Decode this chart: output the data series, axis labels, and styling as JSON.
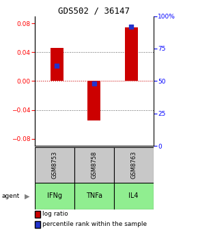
{
  "title": "GDS502 / 36147",
  "samples": [
    "GSM8753",
    "GSM8758",
    "GSM8763"
  ],
  "agents": [
    "IFNg",
    "TNFa",
    "IL4"
  ],
  "log_ratios": [
    0.046,
    -0.055,
    0.074
  ],
  "percentile_ranks": [
    0.62,
    0.48,
    0.92
  ],
  "ylim_left": [
    -0.09,
    0.09
  ],
  "ylim_right": [
    0,
    1
  ],
  "yticks_left": [
    -0.08,
    -0.04,
    0,
    0.04,
    0.08
  ],
  "yticks_right": [
    0,
    0.25,
    0.5,
    0.75,
    1.0
  ],
  "ytick_labels_right": [
    "0",
    "25",
    "50",
    "75",
    "100%"
  ],
  "bar_color": "#CC0000",
  "dot_color": "#2233CC",
  "sample_bg": "#C8C8C8",
  "agent_bg": "#90EE90",
  "grid_color": "#555555",
  "zero_line_color": "#CC0000",
  "bar_width": 0.35,
  "dot_size": 22
}
